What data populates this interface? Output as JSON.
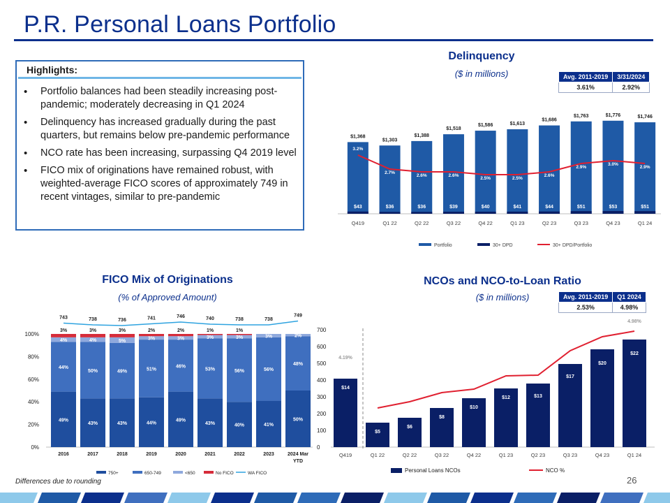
{
  "page": {
    "title": "P.R. Personal Loans Portfolio",
    "footnote": "Differences due to rounding",
    "page_number": "26"
  },
  "highlights": {
    "heading": "Highlights:",
    "bullets": [
      "Portfolio balances had been steadily increasing post-pandemic; moderately decreasing in Q1 2024",
      "Delinquency has increased gradually during the past quarters, but remains below pre-pandemic performance",
      "NCO rate has been increasing, surpassing Q4 2019 level",
      "FICO mix of originations have remained robust, with weighted-average FICO scores of approximately 749 in recent vintages, similar to pre-pandemic"
    ]
  },
  "delinquency_table": {
    "headers": [
      "Avg. 2011-2019",
      "3/31/2024"
    ],
    "values": [
      "3.61%",
      "2.92%"
    ]
  },
  "nco_table": {
    "headers": [
      "Avg. 2011-2019",
      "Q1 2024"
    ],
    "values": [
      "2.53%",
      "4.98%"
    ]
  },
  "colors": {
    "navy": "#0b2f8c",
    "portfolio_bar": "#1f5aa6",
    "dpd_bar": "#0a1f66",
    "red_line": "#e02030",
    "fico_750": "#1f4e9e",
    "fico_650": "#3f6fbf",
    "fico_lt650": "#8fa9dd",
    "fico_nofico": "#d62c3a",
    "wa_fico": "#2ea3e0",
    "nco_bar": "#0a1f66"
  },
  "chart_data": [
    {
      "type": "bar",
      "title": "Delinquency",
      "subtitle": "($ in millions)",
      "categories": [
        "Q419",
        "Q1 22",
        "Q2 22",
        "Q3 22",
        "Q4 22",
        "Q1 23",
        "Q2 23",
        "Q3 23",
        "Q4 23",
        "Q1 24"
      ],
      "series": [
        {
          "name": "Portfolio",
          "values": [
            1368,
            1303,
            1388,
            1518,
            1586,
            1613,
            1686,
            1763,
            1776,
            1746
          ],
          "labels": [
            "$1,368",
            "$1,303",
            "$1,388",
            "$1,518",
            "$1,586",
            "$1,613",
            "$1,686",
            "$1,763",
            "$1,776",
            "$1,746"
          ]
        },
        {
          "name": "30+ DPD",
          "values": [
            43,
            36,
            36,
            39,
            40,
            41,
            44,
            51,
            53,
            51
          ],
          "labels": [
            "$43",
            "$36",
            "$36",
            "$39",
            "$40",
            "$41",
            "$44",
            "$51",
            "$53",
            "$51"
          ]
        },
        {
          "name": "30+ DPD/Portfolio",
          "type": "line",
          "values": [
            3.2,
            2.7,
            2.6,
            2.6,
            2.5,
            2.5,
            2.6,
            2.9,
            3.0,
            2.9
          ],
          "labels": [
            "3.2%",
            "2.7%",
            "2.6%",
            "2.6%",
            "2.5%",
            "2.5%",
            "2.6%",
            "2.9%",
            "3.0%",
            "2.9%"
          ]
        }
      ],
      "legend": "bottom"
    },
    {
      "type": "bar",
      "stacked": true,
      "title": "FICO Mix of Originations",
      "subtitle": "(% of Approved Amount)",
      "categories": [
        "2016",
        "2017",
        "2018",
        "2019",
        "2020",
        "2021",
        "2022",
        "2023",
        "2024 Mar YTD"
      ],
      "category_lines": [
        [
          "2016"
        ],
        [
          "2017"
        ],
        [
          "2018"
        ],
        [
          "2019"
        ],
        [
          "2020"
        ],
        [
          "2021"
        ],
        [
          "2022"
        ],
        [
          "2023"
        ],
        [
          "2024 Mar",
          "YTD"
        ]
      ],
      "y_ticks": [
        "0%",
        "20%",
        "40%",
        "60%",
        "80%",
        "100%"
      ],
      "ylim": [
        0,
        100
      ],
      "series": [
        {
          "name": "750+",
          "values": [
            49,
            43,
            43,
            44,
            49,
            43,
            40,
            41,
            50
          ]
        },
        {
          "name": "650-749",
          "values": [
            44,
            50,
            49,
            51,
            46,
            53,
            56,
            56,
            48
          ]
        },
        {
          "name": "<650",
          "values": [
            4,
            4,
            5,
            3,
            3,
            3,
            3,
            3,
            2
          ]
        },
        {
          "name": "No FICO",
          "values": [
            3,
            3,
            3,
            2,
            2,
            1,
            1,
            0,
            0
          ]
        },
        {
          "name": "WA FICO",
          "type": "line",
          "values": [
            743,
            738,
            736,
            741,
            746,
            740,
            738,
            738,
            749
          ]
        }
      ],
      "segment_labels": {
        "750+": [
          "49%",
          "43%",
          "43%",
          "44%",
          "49%",
          "43%",
          "40%",
          "41%",
          "50%"
        ],
        "650-749": [
          "44%",
          "50%",
          "49%",
          "51%",
          "46%",
          "53%",
          "56%",
          "56%",
          "48%"
        ],
        "<650": [
          "4%",
          "4%",
          "5%",
          "3%",
          "3%",
          "3%",
          "3%",
          "3%",
          "2%"
        ],
        "No FICO": [
          "3%",
          "3%",
          "3%",
          "2%",
          "2%",
          "1%",
          "1%",
          "",
          ""
        ]
      },
      "legend": "bottom"
    },
    {
      "type": "bar",
      "title": "NCOs and NCO-to-Loan Ratio",
      "subtitle": "($ in millions)",
      "categories": [
        "Q419",
        "Q1 22",
        "Q2 22",
        "Q3 22",
        "Q4 22",
        "Q1 23",
        "Q2 23",
        "Q3 23",
        "Q4 23",
        "Q1 24"
      ],
      "y_ticks": [
        "0",
        "100",
        "200",
        "300",
        "400",
        "500",
        "600",
        "700"
      ],
      "ylim": [
        0,
        700
      ],
      "series": [
        {
          "name": "Personal Loans NCOs",
          "values": [
            14,
            5,
            6,
            8,
            10,
            12,
            13,
            17,
            20,
            22
          ],
          "labels": [
            "$14",
            "$5",
            "$6",
            "$8",
            "$10",
            "$12",
            "$13",
            "$17",
            "$20",
            "$22"
          ]
        },
        {
          "name": "NCO %",
          "type": "line",
          "values": [
            4.19,
            null,
            null,
            null,
            null,
            null,
            null,
            null,
            null,
            4.98
          ],
          "labels": [
            "4.19%",
            "",
            "",
            "",
            "",
            "",
            "",
            "",
            "",
            "4.98%"
          ]
        }
      ],
      "legend": "bottom"
    }
  ]
}
